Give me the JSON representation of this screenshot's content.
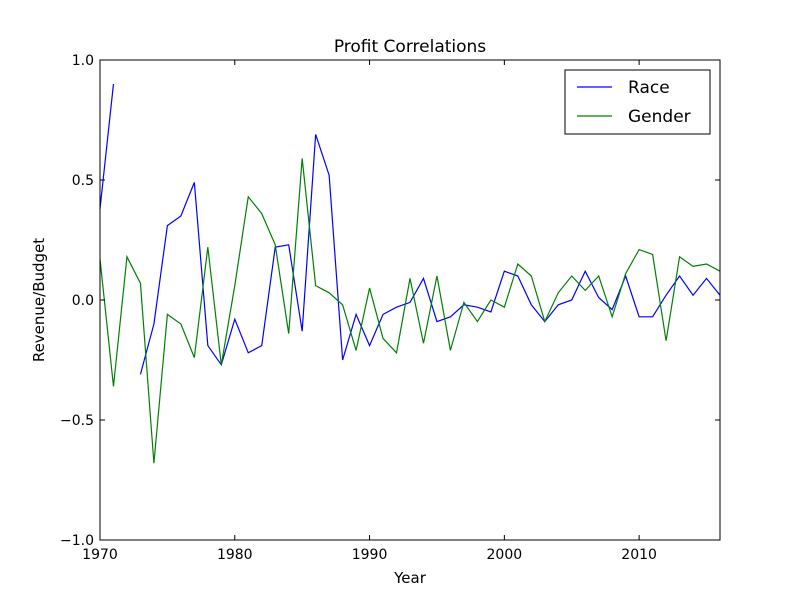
{
  "chart_data": {
    "type": "line",
    "title": "Profit Correlations",
    "xlabel": "Year",
    "ylabel": "Revenue/Budget",
    "xlim": [
      1970,
      2016
    ],
    "ylim": [
      -1.0,
      1.0
    ],
    "xticks": [
      1970,
      1980,
      1990,
      2000,
      2010
    ],
    "xtick_labels": [
      "1970",
      "1980",
      "1990",
      "2000",
      "2010"
    ],
    "yticks": [
      -1.0,
      -0.5,
      0.0,
      0.5,
      1.0
    ],
    "ytick_labels": [
      "−1.0",
      "−0.5",
      "0.0",
      "0.5",
      "1.0"
    ],
    "grid": false,
    "legend_position": "top-right",
    "series": [
      {
        "name": "Race",
        "color": "#0000ff",
        "x": [
          1970,
          1971,
          1972,
          1973,
          1974,
          1975,
          1976,
          1977,
          1978,
          1979,
          1980,
          1981,
          1982,
          1983,
          1984,
          1985,
          1986,
          1987,
          1988,
          1989,
          1990,
          1991,
          1992,
          1993,
          1994,
          1995,
          1996,
          1997,
          1998,
          1999,
          2000,
          2001,
          2002,
          2003,
          2004,
          2005,
          2006,
          2007,
          2008,
          2009,
          2010,
          2011,
          2012,
          2013,
          2014,
          2015,
          2016
        ],
        "y": [
          0.38,
          0.9,
          null,
          -0.31,
          -0.1,
          0.31,
          0.35,
          0.49,
          -0.19,
          -0.27,
          -0.08,
          -0.22,
          -0.19,
          0.22,
          0.23,
          -0.13,
          0.69,
          0.52,
          -0.25,
          -0.06,
          -0.19,
          -0.06,
          -0.03,
          -0.01,
          0.09,
          -0.09,
          -0.07,
          -0.02,
          -0.03,
          -0.05,
          0.12,
          0.1,
          -0.02,
          -0.09,
          -0.02,
          0.0,
          0.12,
          0.01,
          -0.04,
          0.1,
          -0.07,
          -0.07,
          0.02,
          0.1,
          0.02,
          0.09,
          0.02
        ]
      },
      {
        "name": "Gender",
        "color": "#008000",
        "x": [
          1970,
          1971,
          1972,
          1973,
          1974,
          1975,
          1976,
          1977,
          1978,
          1979,
          1980,
          1981,
          1982,
          1983,
          1984,
          1985,
          1986,
          1987,
          1988,
          1989,
          1990,
          1991,
          1992,
          1993,
          1994,
          1995,
          1996,
          1997,
          1998,
          1999,
          2000,
          2001,
          2002,
          2003,
          2004,
          2005,
          2006,
          2007,
          2008,
          2009,
          2010,
          2011,
          2012,
          2013,
          2014,
          2015,
          2016
        ],
        "y": [
          0.17,
          -0.36,
          0.18,
          0.07,
          -0.68,
          -0.06,
          -0.1,
          -0.24,
          0.22,
          -0.27,
          0.06,
          0.43,
          0.36,
          0.23,
          -0.14,
          0.59,
          0.06,
          0.03,
          -0.02,
          -0.21,
          0.05,
          -0.16,
          -0.22,
          0.09,
          -0.18,
          0.1,
          -0.21,
          -0.01,
          -0.09,
          0.0,
          -0.03,
          0.15,
          0.1,
          -0.09,
          0.03,
          0.1,
          0.04,
          0.1,
          -0.07,
          0.11,
          0.21,
          0.19,
          -0.17,
          0.18,
          0.14,
          0.15,
          0.12
        ]
      }
    ]
  }
}
